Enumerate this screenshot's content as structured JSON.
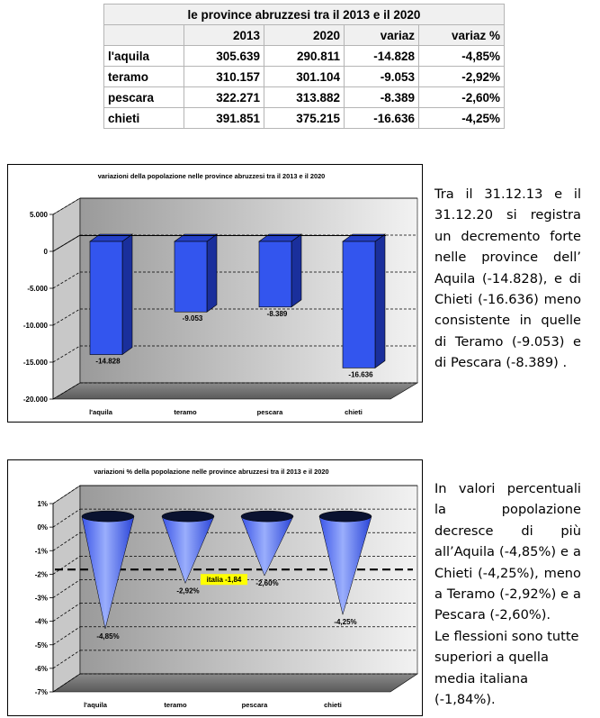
{
  "table": {
    "title": "le province abruzzesi tra il 2013 e il 2020",
    "headers": [
      "",
      "2013",
      "2020",
      "variaz",
      "variaz %"
    ],
    "rows": [
      [
        "l'aquila",
        "305.639",
        "290.811",
        "-14.828",
        "-4,85%"
      ],
      [
        "teramo",
        "310.157",
        "301.104",
        "-9.053",
        "-2,92%"
      ],
      [
        "pescara",
        "322.271",
        "313.882",
        "-8.389",
        "-2,60%"
      ],
      [
        "chieti",
        "391.851",
        "375.215",
        "-16.636",
        "-4,25%"
      ]
    ]
  },
  "chart_data": [
    {
      "type": "bar",
      "title": "variazioni della popolazione nelle province abruzzesi tra il 2013 e il 2020",
      "categories": [
        "l'aquila",
        "teramo",
        "pescara",
        "chieti"
      ],
      "values": [
        -14828,
        -9053,
        -8389,
        -16636
      ],
      "value_labels": [
        "-14.828",
        "-9.053",
        "-8.389",
        "-16.636"
      ],
      "ylim": [
        -20000,
        5000
      ],
      "yticks": [
        5000,
        0,
        -5000,
        -10000,
        -15000,
        -20000
      ],
      "ytick_labels": [
        "5.000",
        "0",
        "-5.000",
        "-10.000",
        "-15.000",
        "-20.000"
      ],
      "xlabel": "",
      "ylabel": "",
      "bar_color": "#3355ee"
    },
    {
      "type": "bar",
      "title": "variazioni % della popolazione nelle province abruzzesi tra il 2013 e il 2020",
      "categories": [
        "l'aquila",
        "teramo",
        "pescara",
        "chieti"
      ],
      "values": [
        -4.85,
        -2.92,
        -2.6,
        -4.25
      ],
      "value_labels": [
        "-4,85%",
        "-2,92%",
        "-2,60%",
        "-4,25%"
      ],
      "ylim": [
        -7,
        1
      ],
      "yticks": [
        1,
        0,
        -1,
        -2,
        -3,
        -4,
        -5,
        -6,
        -7
      ],
      "ytick_labels": [
        "1%",
        "0%",
        "-1%",
        "-2%",
        "-3%",
        "-4%",
        "-5%",
        "-6%",
        "-7%"
      ],
      "reference": {
        "value": -1.84,
        "label": "italia -1,84"
      },
      "xlabel": "",
      "ylabel": "",
      "bar_color": "#3355ee"
    }
  ],
  "text1": "Tra il 31.12.13 e il 31.12.20 si registra un decremento forte nelle province dell’ Aquila (-14.828), e di Chieti (-16.636) meno consistente in quelle di Teramo (-9.053) e di Pescara (-8.389) .",
  "text2a": "In valori percentuali la popolazione decresce di più all’Aquila (-4,85%) e a Chieti (-4,25%), meno a Teramo (-2,92%) e a Pescara (-2,60%).",
  "text2b": "Le flessioni sono tutte superiori a quella media italiana (-1,84%)."
}
